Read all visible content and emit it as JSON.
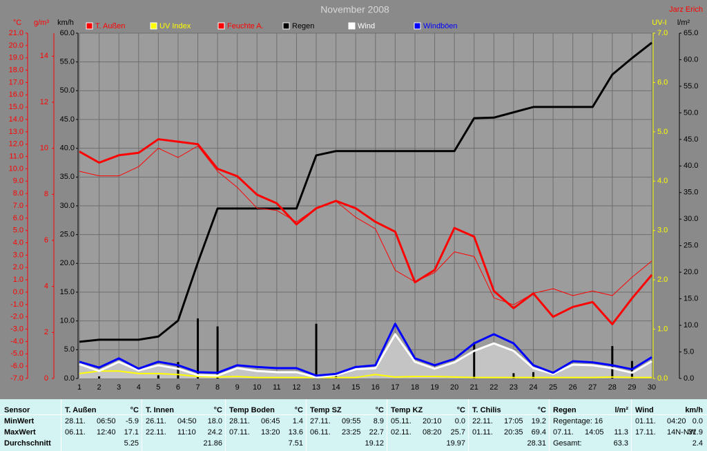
{
  "chart_data": {
    "type": "line",
    "title": "November 2008",
    "author": "Jarz Erich",
    "x": [
      1,
      2,
      3,
      4,
      5,
      6,
      7,
      8,
      9,
      10,
      11,
      12,
      13,
      14,
      15,
      16,
      17,
      18,
      19,
      20,
      21,
      22,
      23,
      24,
      25,
      26,
      27,
      28,
      29,
      30
    ],
    "xlim": [
      1,
      30
    ],
    "xticks": [
      1,
      2,
      3,
      4,
      5,
      6,
      7,
      8,
      9,
      10,
      11,
      12,
      13,
      14,
      15,
      16,
      17,
      18,
      19,
      20,
      21,
      22,
      23,
      24,
      25,
      26,
      27,
      28,
      29,
      30
    ],
    "grid": true,
    "axes": {
      "temp": {
        "label": "°C",
        "side": "left",
        "color": "#ff0000",
        "ylim": [
          -7,
          21
        ],
        "yticks": [
          {
            "value": -7,
            "label": "-7.0"
          },
          {
            "value": -6,
            "label": "-6.0"
          },
          {
            "value": -5,
            "label": "-5.0"
          },
          {
            "value": -4,
            "label": "-4.0"
          },
          {
            "value": -3,
            "label": "-3.0"
          },
          {
            "value": -2,
            "label": "-2.0"
          },
          {
            "value": -1,
            "label": "-1.0"
          },
          {
            "value": 0,
            "label": "0.0"
          },
          {
            "value": 1,
            "label": "1.0"
          },
          {
            "value": 2,
            "label": "2.0"
          },
          {
            "value": 3,
            "label": "3.0"
          },
          {
            "value": 4,
            "label": "4.0"
          },
          {
            "value": 5,
            "label": "5.0"
          },
          {
            "value": 6,
            "label": "6.0"
          },
          {
            "value": 7,
            "label": "7.0"
          },
          {
            "value": 8,
            "label": "8.0"
          },
          {
            "value": 9,
            "label": "9.0"
          },
          {
            "value": 10,
            "label": "10.0"
          },
          {
            "value": 11,
            "label": "11.0"
          },
          {
            "value": 12,
            "label": "12.0"
          },
          {
            "value": 13,
            "label": "13.0"
          },
          {
            "value": 14,
            "label": "14.0"
          },
          {
            "value": 15,
            "label": "15.0"
          },
          {
            "value": 16,
            "label": "16.0"
          },
          {
            "value": 17,
            "label": "17.0"
          },
          {
            "value": 18,
            "label": "18.0"
          },
          {
            "value": 19,
            "label": "19.0"
          },
          {
            "value": 20,
            "label": "20.0"
          },
          {
            "value": 21,
            "label": "21.0"
          }
        ]
      },
      "hum": {
        "label": "g/m³",
        "side": "left",
        "color": "#ff0000",
        "ylim": [
          0,
          15
        ],
        "yticks": [
          0,
          2,
          4,
          6,
          8,
          10,
          12,
          14
        ]
      },
      "wind": {
        "label": "km/h",
        "side": "left",
        "color": "#000000",
        "ylim": [
          0,
          60
        ],
        "yticks": [
          {
            "value": 0,
            "label": "0.0"
          },
          {
            "value": 5,
            "label": "5.0"
          },
          {
            "value": 10,
            "label": "10.0"
          },
          {
            "value": 15,
            "label": "15.0"
          },
          {
            "value": 20,
            "label": "20.0"
          },
          {
            "value": 25,
            "label": "25.0"
          },
          {
            "value": 30,
            "label": "30.0"
          },
          {
            "value": 35,
            "label": "35.0"
          },
          {
            "value": 40,
            "label": "40.0"
          },
          {
            "value": 45,
            "label": "45.0"
          },
          {
            "value": 50,
            "label": "50.0"
          },
          {
            "value": 55,
            "label": "55.0"
          },
          {
            "value": 60,
            "label": "60.0"
          }
        ]
      },
      "uv": {
        "label": "UV-I",
        "side": "right",
        "color": "#ffff00",
        "ylim": [
          0,
          7
        ],
        "yticks": [
          {
            "value": 0,
            "label": "0.0"
          },
          {
            "value": 1,
            "label": "1.0"
          },
          {
            "value": 2,
            "label": "2.0"
          },
          {
            "value": 3,
            "label": "3.0"
          },
          {
            "value": 4,
            "label": "4.0"
          },
          {
            "value": 5,
            "label": "5.0"
          },
          {
            "value": 6,
            "label": "6.0"
          },
          {
            "value": 7,
            "label": "7.0"
          }
        ]
      },
      "rain": {
        "label": "l/m²",
        "side": "right",
        "color": "#000000",
        "ylim": [
          0,
          65
        ],
        "yticks": [
          {
            "value": 0,
            "label": "0.0"
          },
          {
            "value": 5,
            "label": "5.0"
          },
          {
            "value": 10,
            "label": "10.0"
          },
          {
            "value": 15,
            "label": "15.0"
          },
          {
            "value": 20,
            "label": "20.0"
          },
          {
            "value": 25,
            "label": "25.0"
          },
          {
            "value": 30,
            "label": "30.0"
          },
          {
            "value": 35,
            "label": "35.0"
          },
          {
            "value": 40,
            "label": "40.0"
          },
          {
            "value": 45,
            "label": "45.0"
          },
          {
            "value": 50,
            "label": "50.0"
          },
          {
            "value": 55,
            "label": "55.0"
          },
          {
            "value": 60,
            "label": "60.0"
          },
          {
            "value": 65,
            "label": "65.0"
          }
        ]
      }
    },
    "series": [
      {
        "name": "T. Außen",
        "color": "#ff0000",
        "axis": "temp",
        "values": [
          11.4,
          10.5,
          11.1,
          11.3,
          12.4,
          12.2,
          12.0,
          10.0,
          9.4,
          7.9,
          7.2,
          5.5,
          6.8,
          7.4,
          6.8,
          5.7,
          4.9,
          0.8,
          1.8,
          5.2,
          4.5,
          0.1,
          -1.3,
          -0.1,
          -2.0,
          -1.2,
          -0.8,
          -2.6,
          -0.5,
          1.4
        ]
      },
      {
        "name": "UV Index",
        "color": "#ffff00",
        "axis": "uv",
        "values": [
          0.1,
          0.15,
          0.15,
          0.1,
          0.1,
          0.08,
          0.04,
          0.03,
          0.04,
          0.02,
          0.02,
          0.02,
          0.02,
          0.02,
          0.02,
          0.08,
          0.03,
          0.04,
          0.04,
          0.03,
          0.02,
          0.02,
          0.02,
          0.02,
          0.02,
          0.02,
          0.02,
          0.03,
          0.02,
          0.02
        ]
      },
      {
        "name": "Feuchte A.",
        "color": "#ff0000",
        "axis": "hum",
        "values": [
          9.0,
          8.8,
          8.8,
          9.2,
          10.0,
          9.6,
          10.1,
          9.0,
          8.3,
          7.4,
          7.3,
          6.8,
          7.4,
          7.7,
          7.0,
          6.5,
          4.7,
          4.2,
          4.6,
          5.5,
          5.3,
          3.5,
          3.2,
          3.7,
          3.9,
          3.6,
          3.8,
          3.6,
          4.4,
          5.1
        ]
      },
      {
        "name": "Regen",
        "color": "#000000",
        "axis": "rain",
        "values": [
          6.9,
          7.3,
          7.3,
          7.3,
          7.9,
          10.9,
          21.8,
          32.0,
          32.0,
          32.0,
          32.0,
          32.0,
          42.0,
          42.8,
          42.8,
          42.8,
          42.8,
          42.8,
          42.8,
          42.8,
          49.0,
          49.1,
          50.1,
          51.1,
          51.1,
          51.1,
          51.1,
          57.2,
          60.3,
          63.2
        ],
        "bars": [
          0,
          0.4,
          0,
          0,
          0.6,
          3.1,
          11.3,
          9.8,
          0,
          0,
          0,
          0,
          10.3,
          0.6,
          0,
          0,
          0,
          0,
          0,
          0,
          6.8,
          0,
          1.0,
          1.2,
          0,
          0,
          0,
          6.1,
          3.3,
          0
        ]
      },
      {
        "name": "Wind",
        "color": "#ffffff",
        "axis": "wind",
        "values": [
          2.5,
          1.3,
          2.9,
          1.4,
          2.3,
          1.7,
          0.6,
          0.5,
          1.8,
          1.3,
          1.1,
          1.1,
          0.2,
          0.6,
          1.6,
          1.8,
          7.7,
          2.9,
          1.7,
          2.8,
          4.8,
          6.1,
          4.8,
          1.8,
          0.8,
          2.4,
          2.3,
          1.8,
          1.0,
          3.0
        ]
      },
      {
        "name": "Windböen",
        "color": "#0000ff",
        "axis": "wind",
        "values": [
          2.9,
          1.9,
          3.5,
          1.7,
          2.9,
          2.3,
          1.1,
          1.0,
          2.3,
          2.0,
          1.8,
          1.8,
          0.5,
          0.8,
          2.0,
          2.3,
          9.5,
          3.5,
          2.3,
          3.4,
          6.1,
          7.7,
          6.1,
          2.3,
          1.0,
          3.0,
          2.8,
          2.3,
          1.6,
          3.7
        ]
      }
    ]
  },
  "table": {
    "corner": "Sensor",
    "row_labels": [
      "MinWert",
      "MaxWert",
      "Durchschnitt"
    ],
    "columns": [
      {
        "name": "T. Außen",
        "unit": "°C",
        "rows": [
          [
            "28.11.",
            "06:50",
            "-5.9"
          ],
          [
            "06.11.",
            "12:40",
            "17.1"
          ],
          [
            "5.25"
          ]
        ]
      },
      {
        "name": "T. Innen",
        "unit": "°C",
        "rows": [
          [
            "26.11.",
            "04:50",
            "18.0"
          ],
          [
            "22.11.",
            "11:10",
            "24.2"
          ],
          [
            "21.86"
          ]
        ]
      },
      {
        "name": "Temp Boden",
        "unit": "°C",
        "rows": [
          [
            "28.11.",
            "06:45",
            "1.4"
          ],
          [
            "07.11.",
            "13:20",
            "13.6"
          ],
          [
            "7.51"
          ]
        ]
      },
      {
        "name": "Temp SZ",
        "unit": "°C",
        "rows": [
          [
            "27.11.",
            "09:55",
            "8.9"
          ],
          [
            "06.11.",
            "23:25",
            "22.7"
          ],
          [
            "19.12"
          ]
        ]
      },
      {
        "name": "Temp KZ",
        "unit": "°C",
        "rows": [
          [
            "05.11.",
            "20:10",
            "0.0"
          ],
          [
            "02.11.",
            "08:20",
            "25.7"
          ],
          [
            "19.97"
          ]
        ]
      },
      {
        "name": "T. Chilis",
        "unit": "°C",
        "rows": [
          [
            "22.11.",
            "17:05",
            "19.2"
          ],
          [
            "01.11.",
            "20:35",
            "69.4"
          ],
          [
            "28.31"
          ]
        ]
      },
      {
        "name": "Regen",
        "unit": "l/m²",
        "rows": [
          [
            "Regentage: 16"
          ],
          [
            "07.11.",
            "14:05",
            "11.3"
          ],
          [
            "Gesamt:",
            "63.3"
          ]
        ]
      },
      {
        "name": "Wind",
        "unit": "km/h",
        "rows": [
          [
            "01.11.",
            "04:20",
            "0.0"
          ],
          [
            "17.11.",
            "14N-NW",
            "31.9"
          ],
          [
            "2.4"
          ]
        ]
      }
    ]
  }
}
